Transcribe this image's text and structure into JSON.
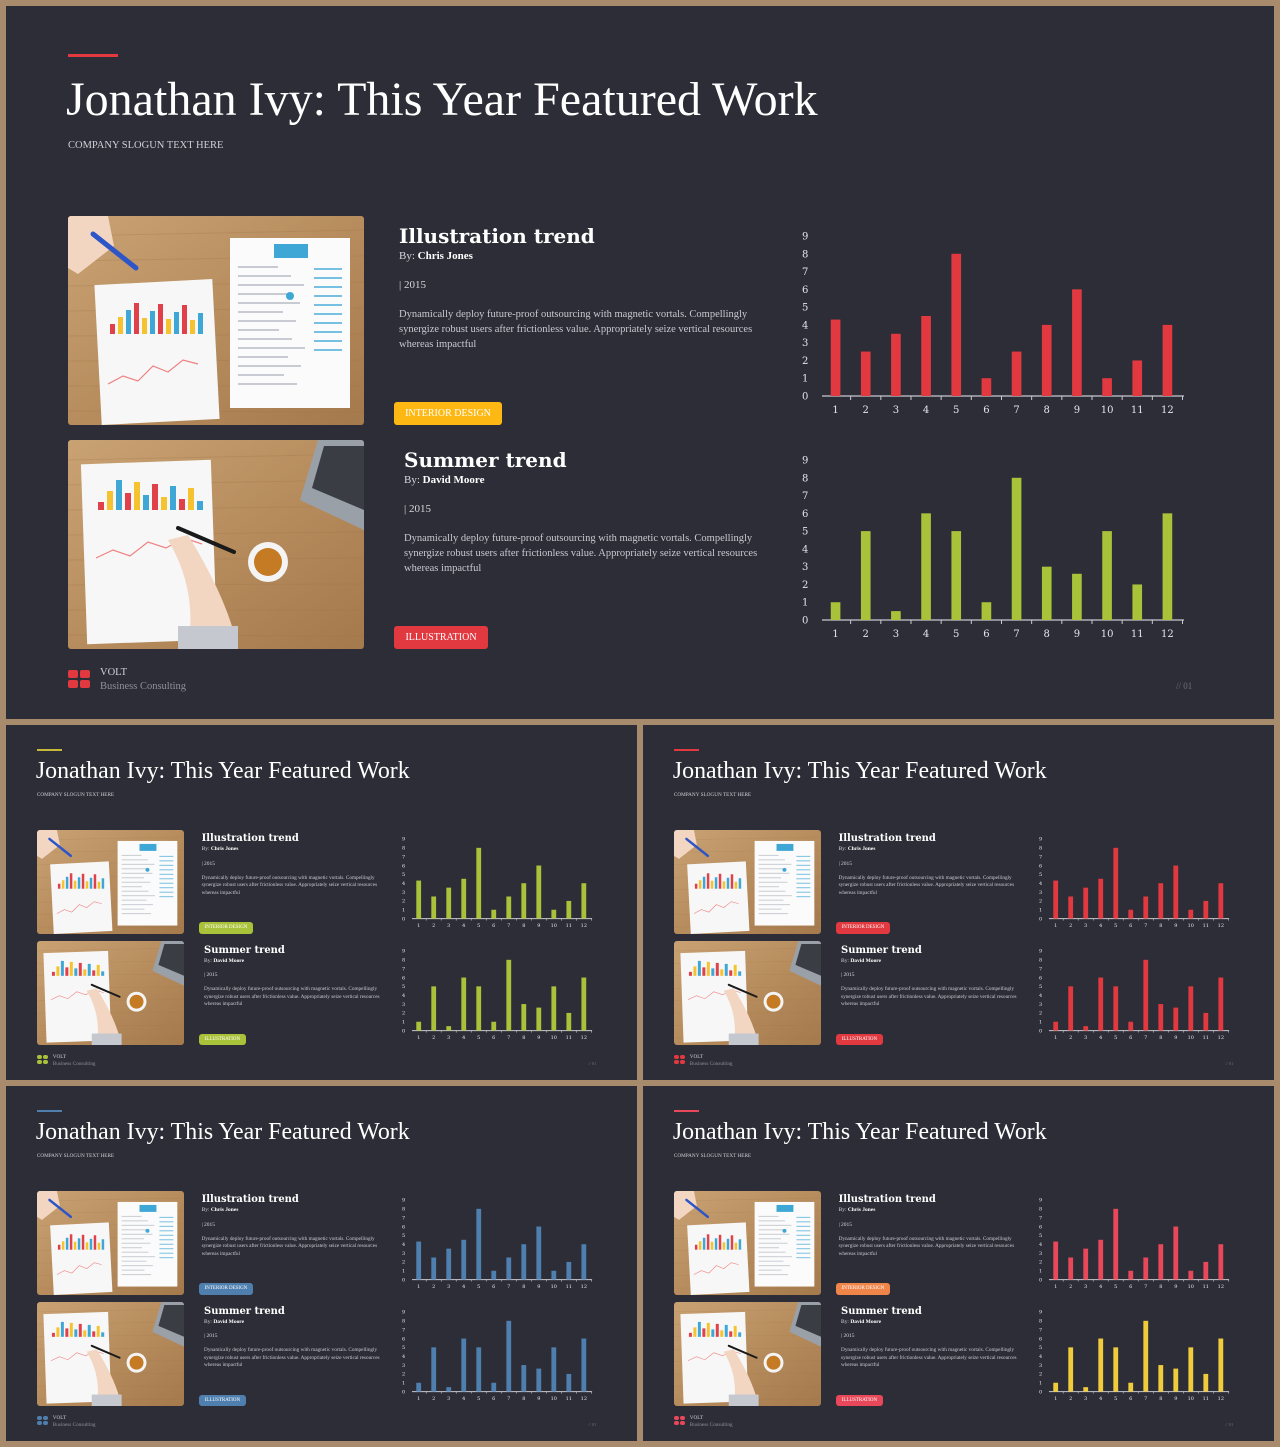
{
  "slides": [
    {
      "accent": "#e1393f",
      "chart1": "#e1393f",
      "chart2": "#a8c23a",
      "tag1_color": "#fdb813",
      "tag2_color": "#e1393f",
      "logo_color": "#e1393f",
      "title": "Jonathan Ivy: This Year Featured Work",
      "slogan": "COMPANY SLOGUN TEXT HERE",
      "projects": [
        {
          "title": "Illustration trend",
          "by": "By:",
          "author": "Chris Jones",
          "year": "| 2015",
          "desc": "Dynamically deploy future-proof outsourcing with magnetic vortals. Compellingly synergize robust users after frictionless value. Appropriately seize vertical resources whereas impactful",
          "tag": "INTERIOR DESIGN"
        },
        {
          "title": "Summer trend",
          "by": "By:",
          "author": "David Moore",
          "year": "| 2015",
          "desc": "Dynamically deploy future-proof outsourcing with magnetic vortals. Compellingly synergize robust users after frictionless value. Appropriately seize vertical resources whereas impactful",
          "tag": "ILLUSTRATION"
        }
      ],
      "brand": "VOLT",
      "brand_sub": "Business Consulting",
      "page": "// 01"
    },
    {
      "accent": "#c9b93a",
      "chart1": "#a8c23a",
      "chart2": "#a8c23a",
      "tag1_color": "#a8c23a",
      "tag2_color": "#a8c23a",
      "logo_color": "#a8c23a",
      "title": "Jonathan Ivy: This Year Featured Work",
      "slogan": "COMPANY SLOGUN TEXT HERE",
      "projects": [
        {
          "title": "Illustration trend",
          "by": "By:",
          "author": "Chris Jones",
          "year": "| 2015",
          "desc": "Dynamically deploy future-proof outsourcing with magnetic vortals. Compellingly synergize robust users after frictionless value. Appropriately seize vertical resources whereas impactful",
          "tag": "INTERIOR DESIGN"
        },
        {
          "title": "Summer trend",
          "by": "By:",
          "author": "David Moore",
          "year": "| 2015",
          "desc": "Dynamically deploy future-proof outsourcing with magnetic vortals. Compellingly synergize robust users after frictionless value. Appropriately seize vertical resources whereas impactful",
          "tag": "ILLUSTRATION"
        }
      ],
      "brand": "VOLT",
      "brand_sub": "Business Consulting",
      "page": "// 01"
    },
    {
      "accent": "#e1393f",
      "chart1": "#e1393f",
      "chart2": "#e1393f",
      "tag1_color": "#e1393f",
      "tag2_color": "#e1393f",
      "logo_color": "#e1393f",
      "title": "Jonathan Ivy: This Year Featured Work",
      "slogan": "COMPANY SLOGUN TEXT HERE",
      "projects": [
        {
          "title": "Illustration trend",
          "by": "By:",
          "author": "Chris Jones",
          "year": "| 2015",
          "desc": "Dynamically deploy future-proof outsourcing with magnetic vortals. Compellingly synergize robust users after frictionless value. Appropriately seize vertical resources whereas impactful",
          "tag": "INTERIOR DESIGN"
        },
        {
          "title": "Summer trend",
          "by": "By:",
          "author": "David Moore",
          "year": "| 2015",
          "desc": "Dynamically deploy future-proof outsourcing with magnetic vortals. Compellingly synergize robust users after frictionless value. Appropriately seize vertical resources whereas impactful",
          "tag": "ILLUSTRATION"
        }
      ],
      "brand": "VOLT",
      "brand_sub": "Business Consulting",
      "page": "// 01"
    },
    {
      "accent": "#4f7fae",
      "chart1": "#4f7fae",
      "chart2": "#4f7fae",
      "tag1_color": "#4f7fae",
      "tag2_color": "#4f7fae",
      "logo_color": "#4f7fae",
      "title": "Jonathan Ivy: This Year Featured Work",
      "slogan": "COMPANY SLOGUN TEXT HERE",
      "projects": [
        {
          "title": "Illustration trend",
          "by": "By:",
          "author": "Chris Jones",
          "year": "| 2015",
          "desc": "Dynamically deploy future-proof outsourcing with magnetic vortals. Compellingly synergize robust users after frictionless value. Appropriately seize vertical resources whereas impactful",
          "tag": "INTERIOR DESIGN"
        },
        {
          "title": "Summer trend",
          "by": "By:",
          "author": "David Moore",
          "year": "| 2015",
          "desc": "Dynamically deploy future-proof outsourcing with magnetic vortals. Compellingly synergize robust users after frictionless value. Appropriately seize vertical resources whereas impactful",
          "tag": "ILLUSTRATION"
        }
      ],
      "brand": "VOLT",
      "brand_sub": "Business Consulting",
      "page": "// 01"
    },
    {
      "accent": "#e8485a",
      "chart1": "#e8485a",
      "chart2": "#f0cc3c",
      "tag1_color": "#f0854a",
      "tag2_color": "#e8485a",
      "logo_color": "#e8485a",
      "title": "Jonathan Ivy: This Year Featured Work",
      "slogan": "COMPANY SLOGUN TEXT HERE",
      "projects": [
        {
          "title": "Illustration trend",
          "by": "By:",
          "author": "Chris Jones",
          "year": "| 2015",
          "desc": "Dynamically deploy future-proof outsourcing with magnetic vortals. Compellingly synergize robust users after frictionless value. Appropriately seize vertical resources whereas impactful",
          "tag": "INTERIOR DESIGN"
        },
        {
          "title": "Summer trend",
          "by": "By:",
          "author": "David Moore",
          "year": "| 2015",
          "desc": "Dynamically deploy future-proof outsourcing with magnetic vortals. Compellingly synergize robust users after frictionless value. Appropriately seize vertical resources whereas impactful",
          "tag": "ILLUSTRATION"
        }
      ],
      "brand": "VOLT",
      "brand_sub": "Business Consulting",
      "page": "// 01"
    }
  ],
  "chart_data": [
    {
      "type": "bar",
      "categories": [
        "1",
        "2",
        "3",
        "4",
        "5",
        "6",
        "7",
        "8",
        "9",
        "10",
        "11",
        "12"
      ],
      "values": [
        4.3,
        2.5,
        3.5,
        4.5,
        8,
        1,
        2.5,
        4,
        6,
        1,
        2,
        4
      ],
      "ylim": [
        0,
        9
      ],
      "yticks": [
        "0",
        "1",
        "2",
        "3",
        "4",
        "5",
        "6",
        "7",
        "8",
        "9"
      ]
    },
    {
      "type": "bar",
      "categories": [
        "1",
        "2",
        "3",
        "4",
        "5",
        "6",
        "7",
        "8",
        "9",
        "10",
        "11",
        "12"
      ],
      "values": [
        1,
        5,
        0.5,
        6,
        5,
        1,
        8,
        3,
        2.6,
        5,
        2,
        6
      ],
      "ylim": [
        0,
        9
      ],
      "yticks": [
        "0",
        "1",
        "2",
        "3",
        "4",
        "5",
        "6",
        "7",
        "8",
        "9"
      ]
    }
  ]
}
